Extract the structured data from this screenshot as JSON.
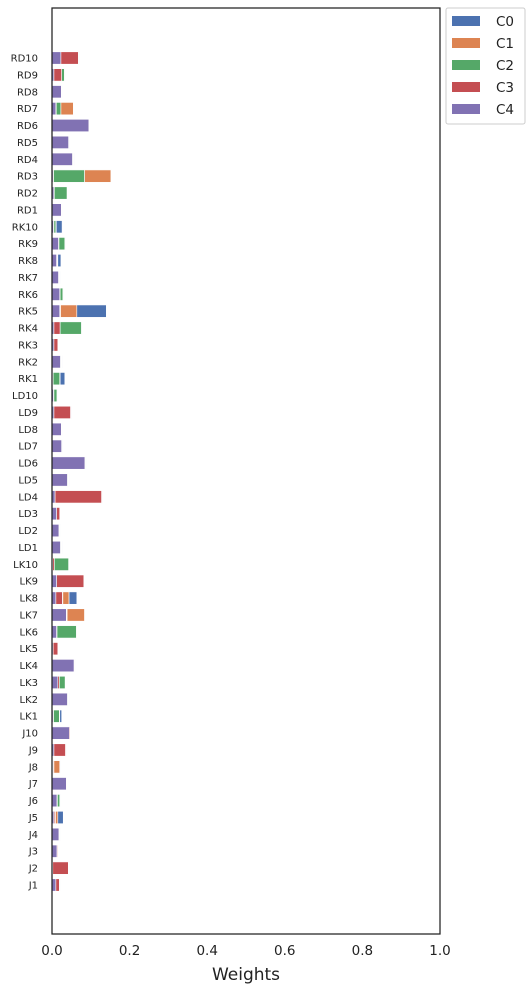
{
  "chart_data": {
    "type": "bar",
    "orientation": "horizontal",
    "stacked": true,
    "xlabel": "Weights",
    "xlim": [
      0,
      1
    ],
    "xticks": [
      "0.0",
      "0.2",
      "0.4",
      "0.6",
      "0.8",
      "1.0"
    ],
    "xtick_values": [
      0,
      0.2,
      0.4,
      0.6,
      0.8,
      1.0
    ],
    "grid": false,
    "legend_position": "outside-top-right",
    "categories": [
      "J1",
      "J2",
      "J3",
      "J4",
      "J5",
      "J6",
      "J7",
      "J8",
      "J9",
      "J10",
      "LK1",
      "LK2",
      "LK3",
      "LK4",
      "LK5",
      "LK6",
      "LK7",
      "LK8",
      "LK9",
      "LK10",
      "LD1",
      "LD2",
      "LD3",
      "LD4",
      "LD5",
      "LD6",
      "LD7",
      "LD8",
      "LD9",
      "LD10",
      "RK1",
      "RK2",
      "RK3",
      "RK4",
      "RK5",
      "RK6",
      "RK7",
      "RK8",
      "RK9",
      "RK10",
      "RD1",
      "RD2",
      "RD3",
      "RD4",
      "RD5",
      "RD6",
      "RD7",
      "RD8",
      "RD9",
      "RD10"
    ],
    "series": [
      {
        "name": "C4",
        "color": "#8172b3",
        "values": [
          0.01,
          0.002,
          0.013,
          0.018,
          0.005,
          0.013,
          0.037,
          0.002,
          0.005,
          0.045,
          0.003,
          0.04,
          0.015,
          0.057,
          0.003,
          0.012,
          0.037,
          0.01,
          0.012,
          0.002,
          0.022,
          0.018,
          0.012,
          0.008,
          0.04,
          0.085,
          0.025,
          0.024,
          0.005,
          0.004,
          0.002,
          0.022,
          0.005,
          0.005,
          0.02,
          0.02,
          0.017,
          0.012,
          0.017,
          0.004,
          0.024,
          0.005,
          0.003,
          0.053,
          0.043,
          0.095,
          0.01,
          0.024,
          0.005,
          0.023
        ]
      },
      {
        "name": "C3",
        "color": "#c44e52",
        "values": [
          0.009,
          0.04,
          0.002,
          0.001,
          0.003,
          0.001,
          0.001,
          0.002,
          0.03,
          0.002,
          0.001,
          0.001,
          0.004,
          0.001,
          0.012,
          0.001,
          0.001,
          0.017,
          0.07,
          0.004,
          0.001,
          0.001,
          0.008,
          0.12,
          0.001,
          0.001,
          0.001,
          0.001,
          0.043,
          0.001,
          0.001,
          0.001,
          0.01,
          0.016,
          0.001,
          0.001,
          0.001,
          0.001,
          0.001,
          0.001,
          0.001,
          0.001,
          0.001,
          0.001,
          0.001,
          0.001,
          0.001,
          0.001,
          0.02,
          0.045
        ]
      },
      {
        "name": "C2",
        "color": "#55a868",
        "values": [
          0.001,
          0.001,
          0.001,
          0.001,
          0.001,
          0.006,
          0.001,
          0.001,
          0.001,
          0.001,
          0.015,
          0.001,
          0.015,
          0.001,
          0.001,
          0.05,
          0.001,
          0.001,
          0.001,
          0.037,
          0.001,
          0.001,
          0.001,
          0.001,
          0.001,
          0.001,
          0.001,
          0.001,
          0.001,
          0.008,
          0.017,
          0.001,
          0.001,
          0.055,
          0.001,
          0.007,
          0.001,
          0.001,
          0.015,
          0.005,
          0.001,
          0.033,
          0.08,
          0.001,
          0.001,
          0.001,
          0.012,
          0.001,
          0.007,
          0.001
        ]
      },
      {
        "name": "C1",
        "color": "#dd8452",
        "values": [
          0.001,
          0.001,
          0.001,
          0.001,
          0.006,
          0.001,
          0.001,
          0.015,
          0.001,
          0.001,
          0.001,
          0.001,
          0.001,
          0.001,
          0.001,
          0.001,
          0.045,
          0.016,
          0.001,
          0.001,
          0.001,
          0.001,
          0.001,
          0.001,
          0.001,
          0.001,
          0.001,
          0.001,
          0.001,
          0.001,
          0.001,
          0.001,
          0.001,
          0.001,
          0.042,
          0.001,
          0.001,
          0.001,
          0.001,
          0.001,
          0.001,
          0.001,
          0.068,
          0.001,
          0.001,
          0.001,
          0.032,
          0.001,
          0.001,
          0.001
        ]
      },
      {
        "name": "C0",
        "color": "#4c72b0",
        "values": [
          0.001,
          0.001,
          0.001,
          0.001,
          0.014,
          0.001,
          0.001,
          0.001,
          0.001,
          0.001,
          0.005,
          0.001,
          0.001,
          0.001,
          0.001,
          0.001,
          0.001,
          0.02,
          0.001,
          0.001,
          0.001,
          0.001,
          0.001,
          0.001,
          0.001,
          0.001,
          0.001,
          0.001,
          0.001,
          0.001,
          0.012,
          0.001,
          0.001,
          0.001,
          0.076,
          0.001,
          0.001,
          0.008,
          0.001,
          0.015,
          0.001,
          0.001,
          0.001,
          0.001,
          0.001,
          0.001,
          0.001,
          0.001,
          0.001,
          0.001
        ]
      }
    ],
    "legend_order": [
      "C0",
      "C1",
      "C2",
      "C3",
      "C4"
    ]
  }
}
